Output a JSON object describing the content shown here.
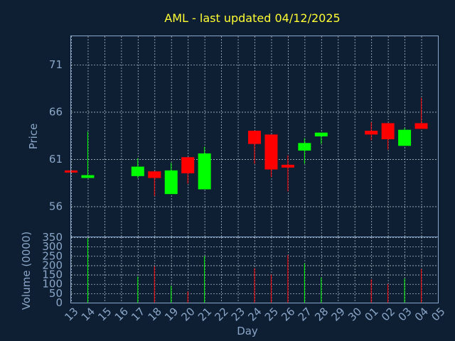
{
  "colors": {
    "background": "#0f1f33",
    "title": "#ffff33",
    "axis_text": "#8aa6c8",
    "up": "#00ff00",
    "down": "#ff0000",
    "grid": "#c8d2dc"
  },
  "chart_data": {
    "type": "candlestick",
    "title": "AML - last updated 04/12/2025",
    "xlabel": "Day",
    "ylabel_price": "Price",
    "ylabel_volume": "Volume (0000)",
    "price_ylim": [
      52.8,
      74.0
    ],
    "price_yticks": [
      56,
      61,
      66,
      71
    ],
    "volume_ylim": [
      0,
      350
    ],
    "volume_yticks": [
      0,
      50,
      100,
      150,
      200,
      250,
      300,
      350
    ],
    "x_tick_labels": [
      "13",
      "14",
      "15",
      "16",
      "17",
      "18",
      "19",
      "20",
      "21",
      "22",
      "23",
      "24",
      "25",
      "26",
      "27",
      "28",
      "29",
      "30",
      "01",
      "02",
      "03",
      "04",
      "05"
    ],
    "grid": true,
    "candles": [
      {
        "day": "13",
        "open": 59.8,
        "close": 59.6,
        "high": 59.8,
        "low": 59.6,
        "volume": 0
      },
      {
        "day": "14",
        "open": 59.0,
        "close": 59.3,
        "high": 63.9,
        "low": 59.0,
        "volume": 345
      },
      {
        "day": "17",
        "open": 59.2,
        "close": 60.2,
        "high": 61.1,
        "low": 59.0,
        "volume": 140
      },
      {
        "day": "18",
        "open": 59.7,
        "close": 59.0,
        "high": 59.7,
        "low": 57.1,
        "volume": 195
      },
      {
        "day": "19",
        "open": 57.3,
        "close": 59.8,
        "high": 60.6,
        "low": 57.3,
        "volume": 90
      },
      {
        "day": "20",
        "open": 61.2,
        "close": 59.5,
        "high": 61.2,
        "low": 58.4,
        "volume": 60
      },
      {
        "day": "21",
        "open": 57.8,
        "close": 61.6,
        "high": 62.3,
        "low": 57.8,
        "volume": 250
      },
      {
        "day": "24",
        "open": 64.0,
        "close": 62.6,
        "high": 64.0,
        "low": 60.5,
        "volume": 185
      },
      {
        "day": "25",
        "open": 63.6,
        "close": 59.9,
        "high": 63.6,
        "low": 59.1,
        "volume": 150
      },
      {
        "day": "26",
        "open": 60.4,
        "close": 60.1,
        "high": 61.4,
        "low": 57.6,
        "volume": 255
      },
      {
        "day": "27",
        "open": 61.9,
        "close": 62.7,
        "high": 63.2,
        "low": 60.5,
        "volume": 210
      },
      {
        "day": "28",
        "open": 63.4,
        "close": 63.8,
        "high": 63.8,
        "low": 62.6,
        "volume": 135
      },
      {
        "day": "01",
        "open": 64.0,
        "close": 63.6,
        "high": 64.9,
        "low": 63.0,
        "volume": 125
      },
      {
        "day": "02",
        "open": 64.8,
        "close": 63.1,
        "high": 64.8,
        "low": 62.0,
        "volume": 100
      },
      {
        "day": "03",
        "open": 62.4,
        "close": 64.1,
        "high": 64.3,
        "low": 62.4,
        "volume": 130
      },
      {
        "day": "04",
        "open": 64.8,
        "close": 64.2,
        "high": 67.5,
        "low": 64.2,
        "volume": 180
      }
    ]
  }
}
